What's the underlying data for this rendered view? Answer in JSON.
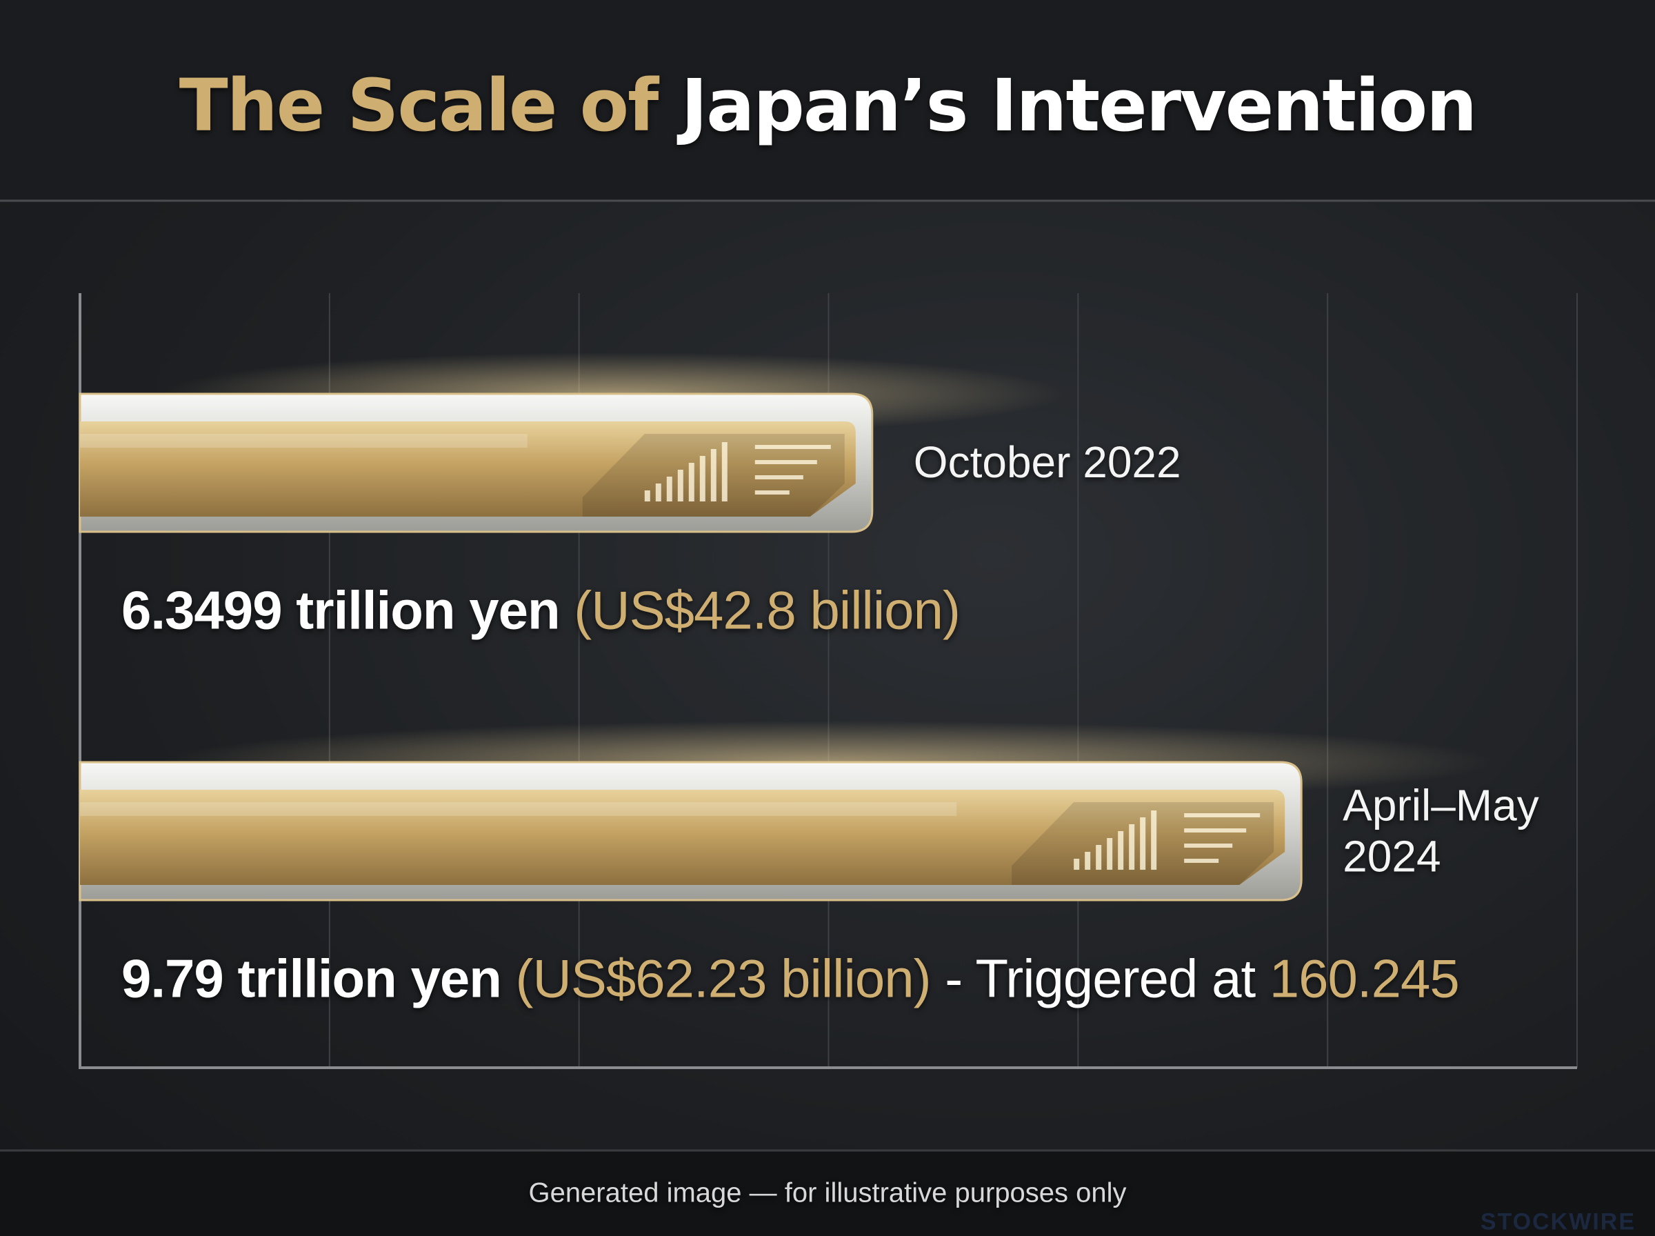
{
  "chart_data": {
    "type": "bar",
    "title_lead": "The Scale of",
    "title": "Japan’s Intervention",
    "categories": [
      "October 2022",
      "April–May 2024"
    ],
    "values": [
      6.3499,
      9.79
    ],
    "value_labels": [
      "6.3499 trillion yen",
      "9.79 trillion yen"
    ],
    "usd_labels": [
      "(US$42.8 billion)",
      "(US$62.23 billion)"
    ],
    "annotation": {
      "text": "- Triggered at",
      "value": 160.245
    },
    "color": "#c9a96a",
    "xlim": [
      0,
      12
    ]
  },
  "footer": "Generated image — for illustrative purposes only",
  "watermark": "STOCKWIRE"
}
